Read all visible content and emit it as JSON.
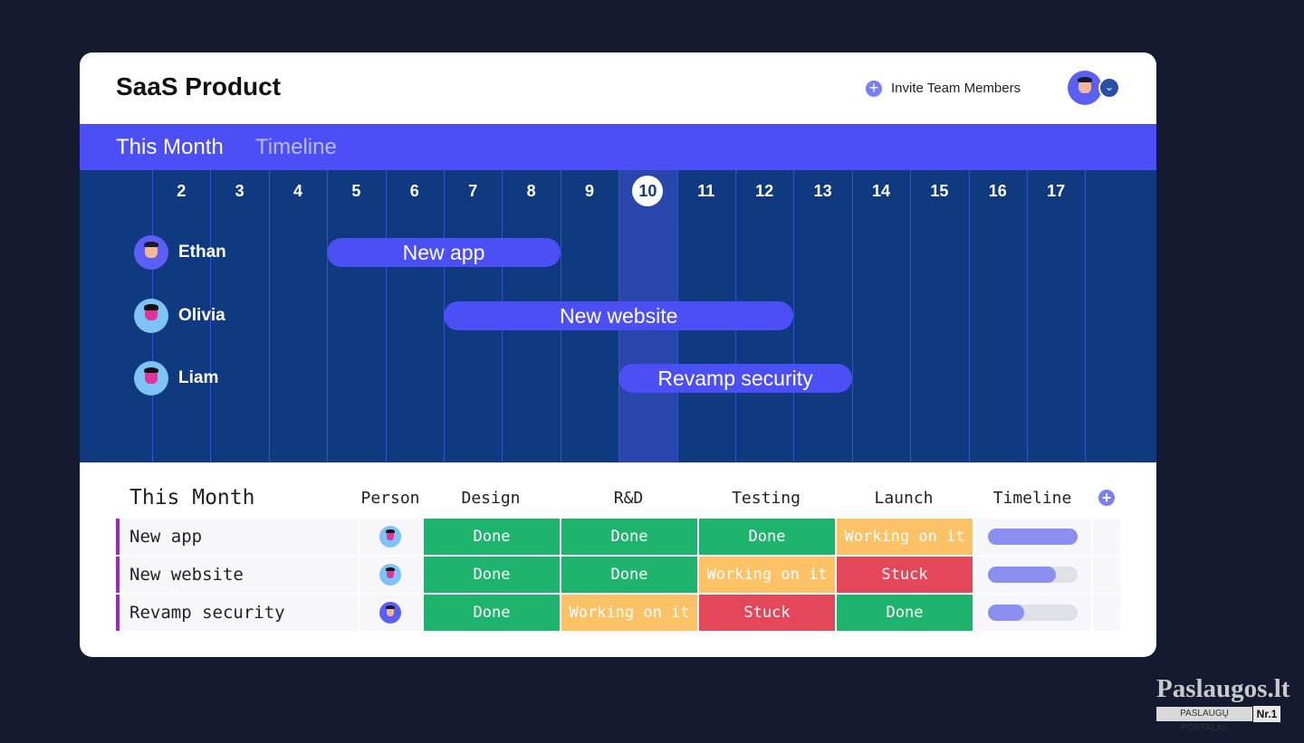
{
  "header": {
    "title": "SaaS Product",
    "invite": "Invite Team Members"
  },
  "tabs": [
    "This Month",
    "Timeline"
  ],
  "timeline": {
    "days": [
      2,
      3,
      4,
      5,
      6,
      7,
      8,
      9,
      10,
      11,
      12,
      13,
      14,
      15,
      16,
      17
    ],
    "today": 10,
    "rows": [
      {
        "person": "Ethan",
        "task": "New app",
        "start": 5,
        "end": 8
      },
      {
        "person": "Olivia",
        "task": "New website",
        "start": 7,
        "end": 12
      },
      {
        "person": "Liam",
        "task": "Revamp security",
        "start": 10,
        "end": 13
      }
    ]
  },
  "table": {
    "title": "This Month",
    "columns": [
      "Person",
      "Design",
      "R&D",
      "Testing",
      "Launch",
      "Timeline"
    ],
    "rows": [
      {
        "name": "New app",
        "statuses": [
          "Done",
          "Done",
          "Done",
          "Working on it"
        ],
        "progress": 100
      },
      {
        "name": "New website",
        "statuses": [
          "Done",
          "Done",
          "Working on it",
          "Stuck"
        ],
        "progress": 76
      },
      {
        "name": "Revamp security",
        "statuses": [
          "Done",
          "Working on it",
          "Stuck",
          "Done"
        ],
        "progress": 40
      }
    ]
  },
  "watermark": {
    "brand": "Paslaugos.lt",
    "tagline": "PASLAUGŲ PORTALAS",
    "badge": "Nr.1"
  }
}
